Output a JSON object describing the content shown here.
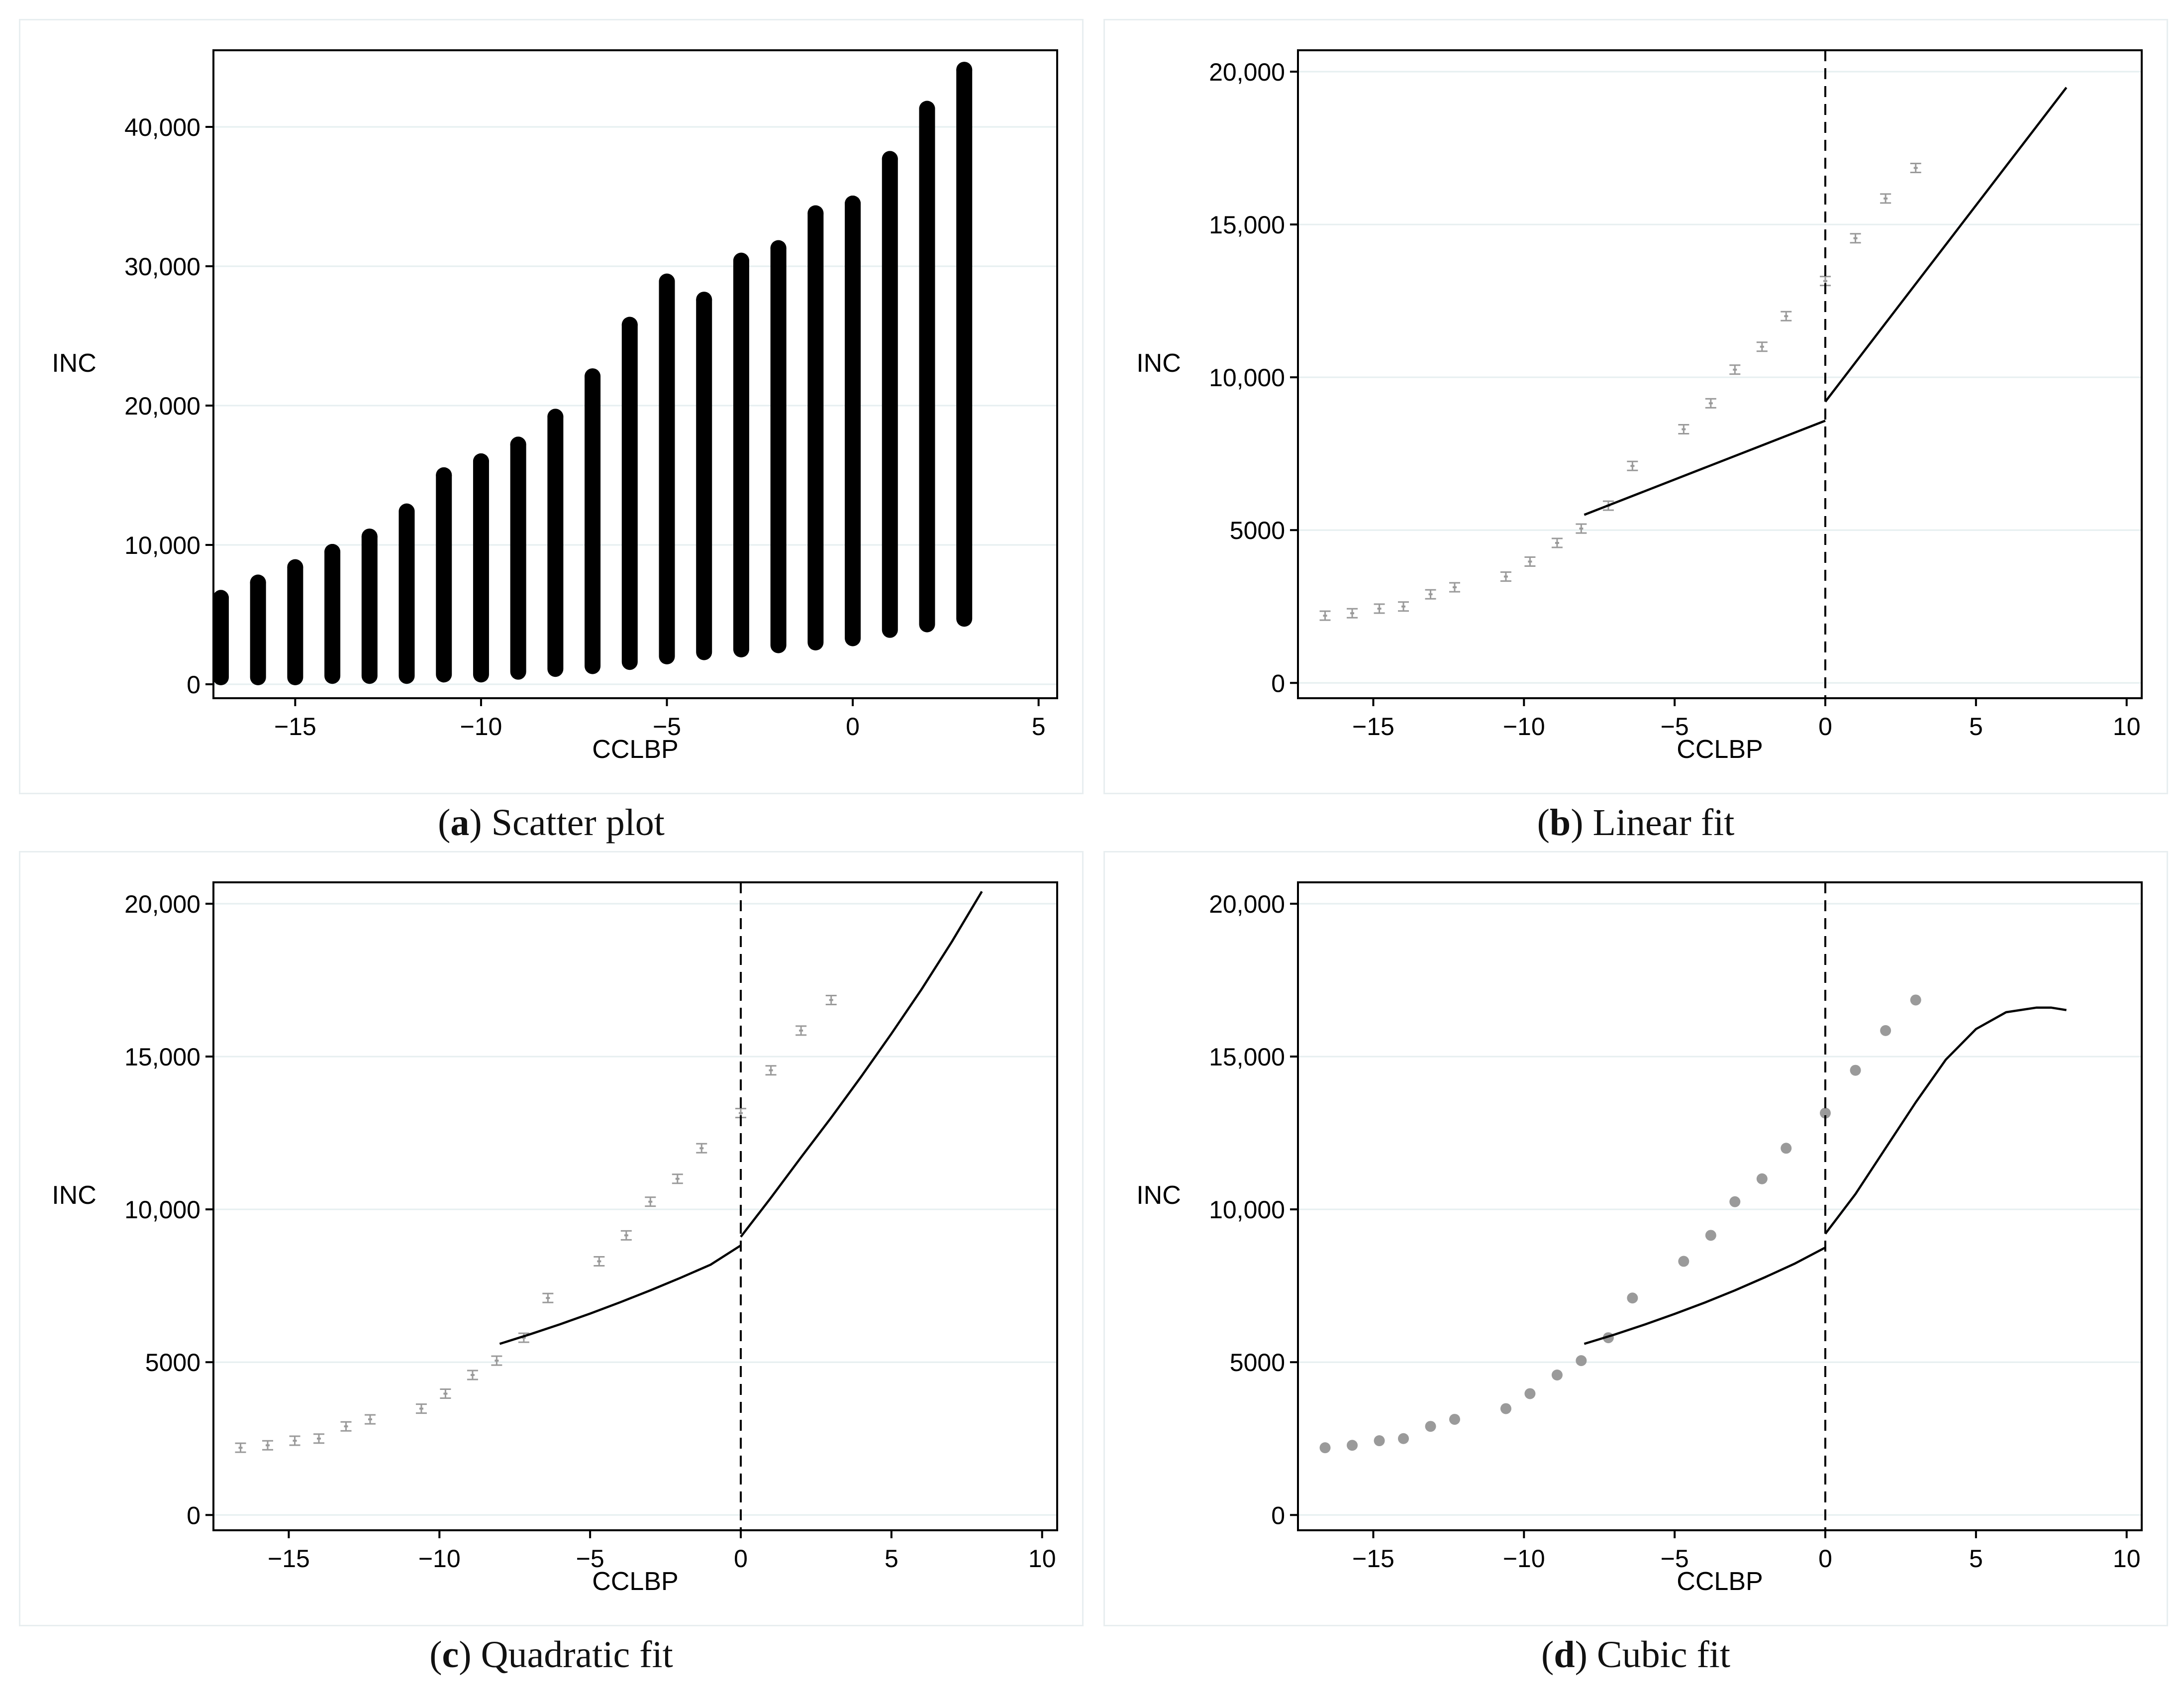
{
  "colors": {
    "axis": "#000000",
    "grid": "#e6eff0",
    "points": "#000000",
    "ci": "#9a9a9a",
    "fit": "#000000",
    "cutoff": "#000000"
  },
  "chart_data": [
    {
      "type": "scatter",
      "panel_letter": "a",
      "caption": "Scatter plot",
      "xlabel": "CCLBP",
      "ylabel": "INC",
      "xlim": [
        -17.2,
        5.5
      ],
      "ylim": [
        -1000,
        45500
      ],
      "xticks": [
        -15,
        -10,
        -5,
        0,
        5
      ],
      "xtick_labels": [
        "−15",
        "−10",
        "−5",
        "0",
        "5"
      ],
      "yticks": [
        0,
        10000,
        20000,
        30000,
        40000
      ],
      "ytick_labels": [
        "0",
        "10,000",
        "20,000",
        "30,000",
        "40,000"
      ],
      "cutoff": null,
      "columns": [
        {
          "x": -17,
          "min": 500,
          "max": 6200
        },
        {
          "x": -16,
          "min": 500,
          "max": 7300
        },
        {
          "x": -15,
          "min": 500,
          "max": 8400
        },
        {
          "x": -14,
          "min": 600,
          "max": 9500
        },
        {
          "x": -13,
          "min": 600,
          "max": 10600
        },
        {
          "x": -12,
          "min": 600,
          "max": 12400
        },
        {
          "x": -11,
          "min": 700,
          "max": 15000
        },
        {
          "x": -10,
          "min": 700,
          "max": 16000
        },
        {
          "x": -9,
          "min": 900,
          "max": 17200
        },
        {
          "x": -8,
          "min": 1100,
          "max": 19200
        },
        {
          "x": -7,
          "min": 1300,
          "max": 22100
        },
        {
          "x": -6,
          "min": 1600,
          "max": 25800
        },
        {
          "x": -5,
          "min": 2000,
          "max": 28900
        },
        {
          "x": -4,
          "min": 2300,
          "max": 27600
        },
        {
          "x": -3,
          "min": 2500,
          "max": 30400
        },
        {
          "x": -2,
          "min": 2800,
          "max": 31300
        },
        {
          "x": -1,
          "min": 3000,
          "max": 33800
        },
        {
          "x": 0,
          "min": 3300,
          "max": 34500
        },
        {
          "x": 1,
          "min": 3900,
          "max": 37700
        },
        {
          "x": 2,
          "min": 4300,
          "max": 41300
        },
        {
          "x": 3,
          "min": 4700,
          "max": 44100
        }
      ]
    },
    {
      "type": "line",
      "panel_letter": "b",
      "caption": "Linear fit",
      "xlabel": "CCLBP",
      "ylabel": "INC",
      "xlim": [
        -17.5,
        10.5
      ],
      "ylim": [
        -500,
        20700
      ],
      "xticks": [
        -15,
        -10,
        -5,
        0,
        5,
        10
      ],
      "xtick_labels": [
        "−15",
        "−10",
        "−5",
        "0",
        "5",
        "10"
      ],
      "yticks": [
        0,
        5000,
        10000,
        15000,
        20000
      ],
      "ytick_labels": [
        "0",
        "5000",
        "10,000",
        "15,000",
        "20,000"
      ],
      "cutoff": 0,
      "marker": "bar",
      "bins": {
        "x": [
          -16.6,
          -15.7,
          -14.8,
          -14.0,
          -13.1,
          -12.3,
          -10.6,
          -9.8,
          -8.9,
          -8.1,
          -7.2,
          -6.4,
          -4.7,
          -3.8,
          -3.0,
          -2.1,
          -1.3,
          0,
          1,
          2,
          3
        ],
        "y": [
          2200,
          2280,
          2430,
          2500,
          2900,
          3130,
          3480,
          3970,
          4580,
          5050,
          5800,
          7100,
          8300,
          9150,
          10250,
          11000,
          12000,
          13150,
          14550,
          15850,
          16850
        ]
      },
      "fit_left": {
        "x": [
          -8,
          -6,
          -4,
          -2,
          0
        ],
        "y": [
          5500,
          6270,
          7040,
          7810,
          8580
        ]
      },
      "fit_right": {
        "x": [
          0,
          2,
          4,
          6,
          8
        ],
        "y": [
          9200,
          11770,
          14340,
          16910,
          19480
        ]
      }
    },
    {
      "type": "line",
      "panel_letter": "c",
      "caption": "Quadratic fit",
      "xlabel": "CCLBP",
      "ylabel": "INC",
      "xlim": [
        -17.5,
        10.5
      ],
      "ylim": [
        -500,
        20700
      ],
      "xticks": [
        -15,
        -10,
        -5,
        0,
        5,
        10
      ],
      "xtick_labels": [
        "−15",
        "−10",
        "−5",
        "0",
        "5",
        "10"
      ],
      "yticks": [
        0,
        5000,
        10000,
        15000,
        20000
      ],
      "ytick_labels": [
        "0",
        "5000",
        "10,000",
        "15,000",
        "20,000"
      ],
      "cutoff": 0,
      "marker": "bar",
      "bins": {
        "x": [
          -16.6,
          -15.7,
          -14.8,
          -14.0,
          -13.1,
          -12.3,
          -10.6,
          -9.8,
          -8.9,
          -8.1,
          -7.2,
          -6.4,
          -4.7,
          -3.8,
          -3.0,
          -2.1,
          -1.3,
          0,
          1,
          2,
          3
        ],
        "y": [
          2200,
          2280,
          2430,
          2500,
          2900,
          3130,
          3480,
          3970,
          4580,
          5050,
          5800,
          7100,
          8300,
          9150,
          10250,
          11000,
          12000,
          13150,
          14550,
          15850,
          16850
        ]
      },
      "fit_left": {
        "x": [
          -8,
          -7,
          -6,
          -5,
          -4,
          -3,
          -2,
          -1,
          0
        ],
        "y": [
          5600,
          5910,
          6240,
          6590,
          6960,
          7350,
          7760,
          8190,
          8820
        ]
      },
      "fit_right": {
        "x": [
          0,
          1,
          2,
          3,
          4,
          5,
          6,
          7,
          8
        ],
        "y": [
          9100,
          10380,
          11700,
          13000,
          14350,
          15750,
          17200,
          18750,
          20400
        ]
      }
    },
    {
      "type": "line",
      "panel_letter": "d",
      "caption": "Cubic fit",
      "xlabel": "CCLBP",
      "ylabel": "INC",
      "xlim": [
        -17.5,
        10.5
      ],
      "ylim": [
        -500,
        20700
      ],
      "xticks": [
        -15,
        -10,
        -5,
        0,
        5,
        10
      ],
      "xtick_labels": [
        "−15",
        "−10",
        "−5",
        "0",
        "5",
        "10"
      ],
      "yticks": [
        0,
        5000,
        10000,
        15000,
        20000
      ],
      "ytick_labels": [
        "0",
        "5000",
        "10,000",
        "15,000",
        "20,000"
      ],
      "cutoff": 0,
      "marker": "dot",
      "bins": {
        "x": [
          -16.6,
          -15.7,
          -14.8,
          -14.0,
          -13.1,
          -12.3,
          -10.6,
          -9.8,
          -8.9,
          -8.1,
          -7.2,
          -6.4,
          -4.7,
          -3.8,
          -3.0,
          -2.1,
          -1.3,
          0,
          1,
          2,
          3
        ],
        "y": [
          2200,
          2280,
          2430,
          2500,
          2900,
          3130,
          3480,
          3970,
          4580,
          5050,
          5800,
          7100,
          8300,
          9150,
          10250,
          11000,
          12000,
          13150,
          14550,
          15850,
          16850
        ]
      },
      "fit_left": {
        "x": [
          -8,
          -7,
          -6,
          -5,
          -4,
          -3,
          -2,
          -1,
          0
        ],
        "y": [
          5600,
          5900,
          6230,
          6580,
          6950,
          7350,
          7780,
          8230,
          8750
        ]
      },
      "fit_right": {
        "x": [
          0,
          1,
          2,
          3,
          4,
          5,
          6,
          7,
          7.5,
          8
        ],
        "y": [
          9200,
          10500,
          12000,
          13500,
          14900,
          15900,
          16450,
          16600,
          16600,
          16520
        ]
      }
    }
  ]
}
